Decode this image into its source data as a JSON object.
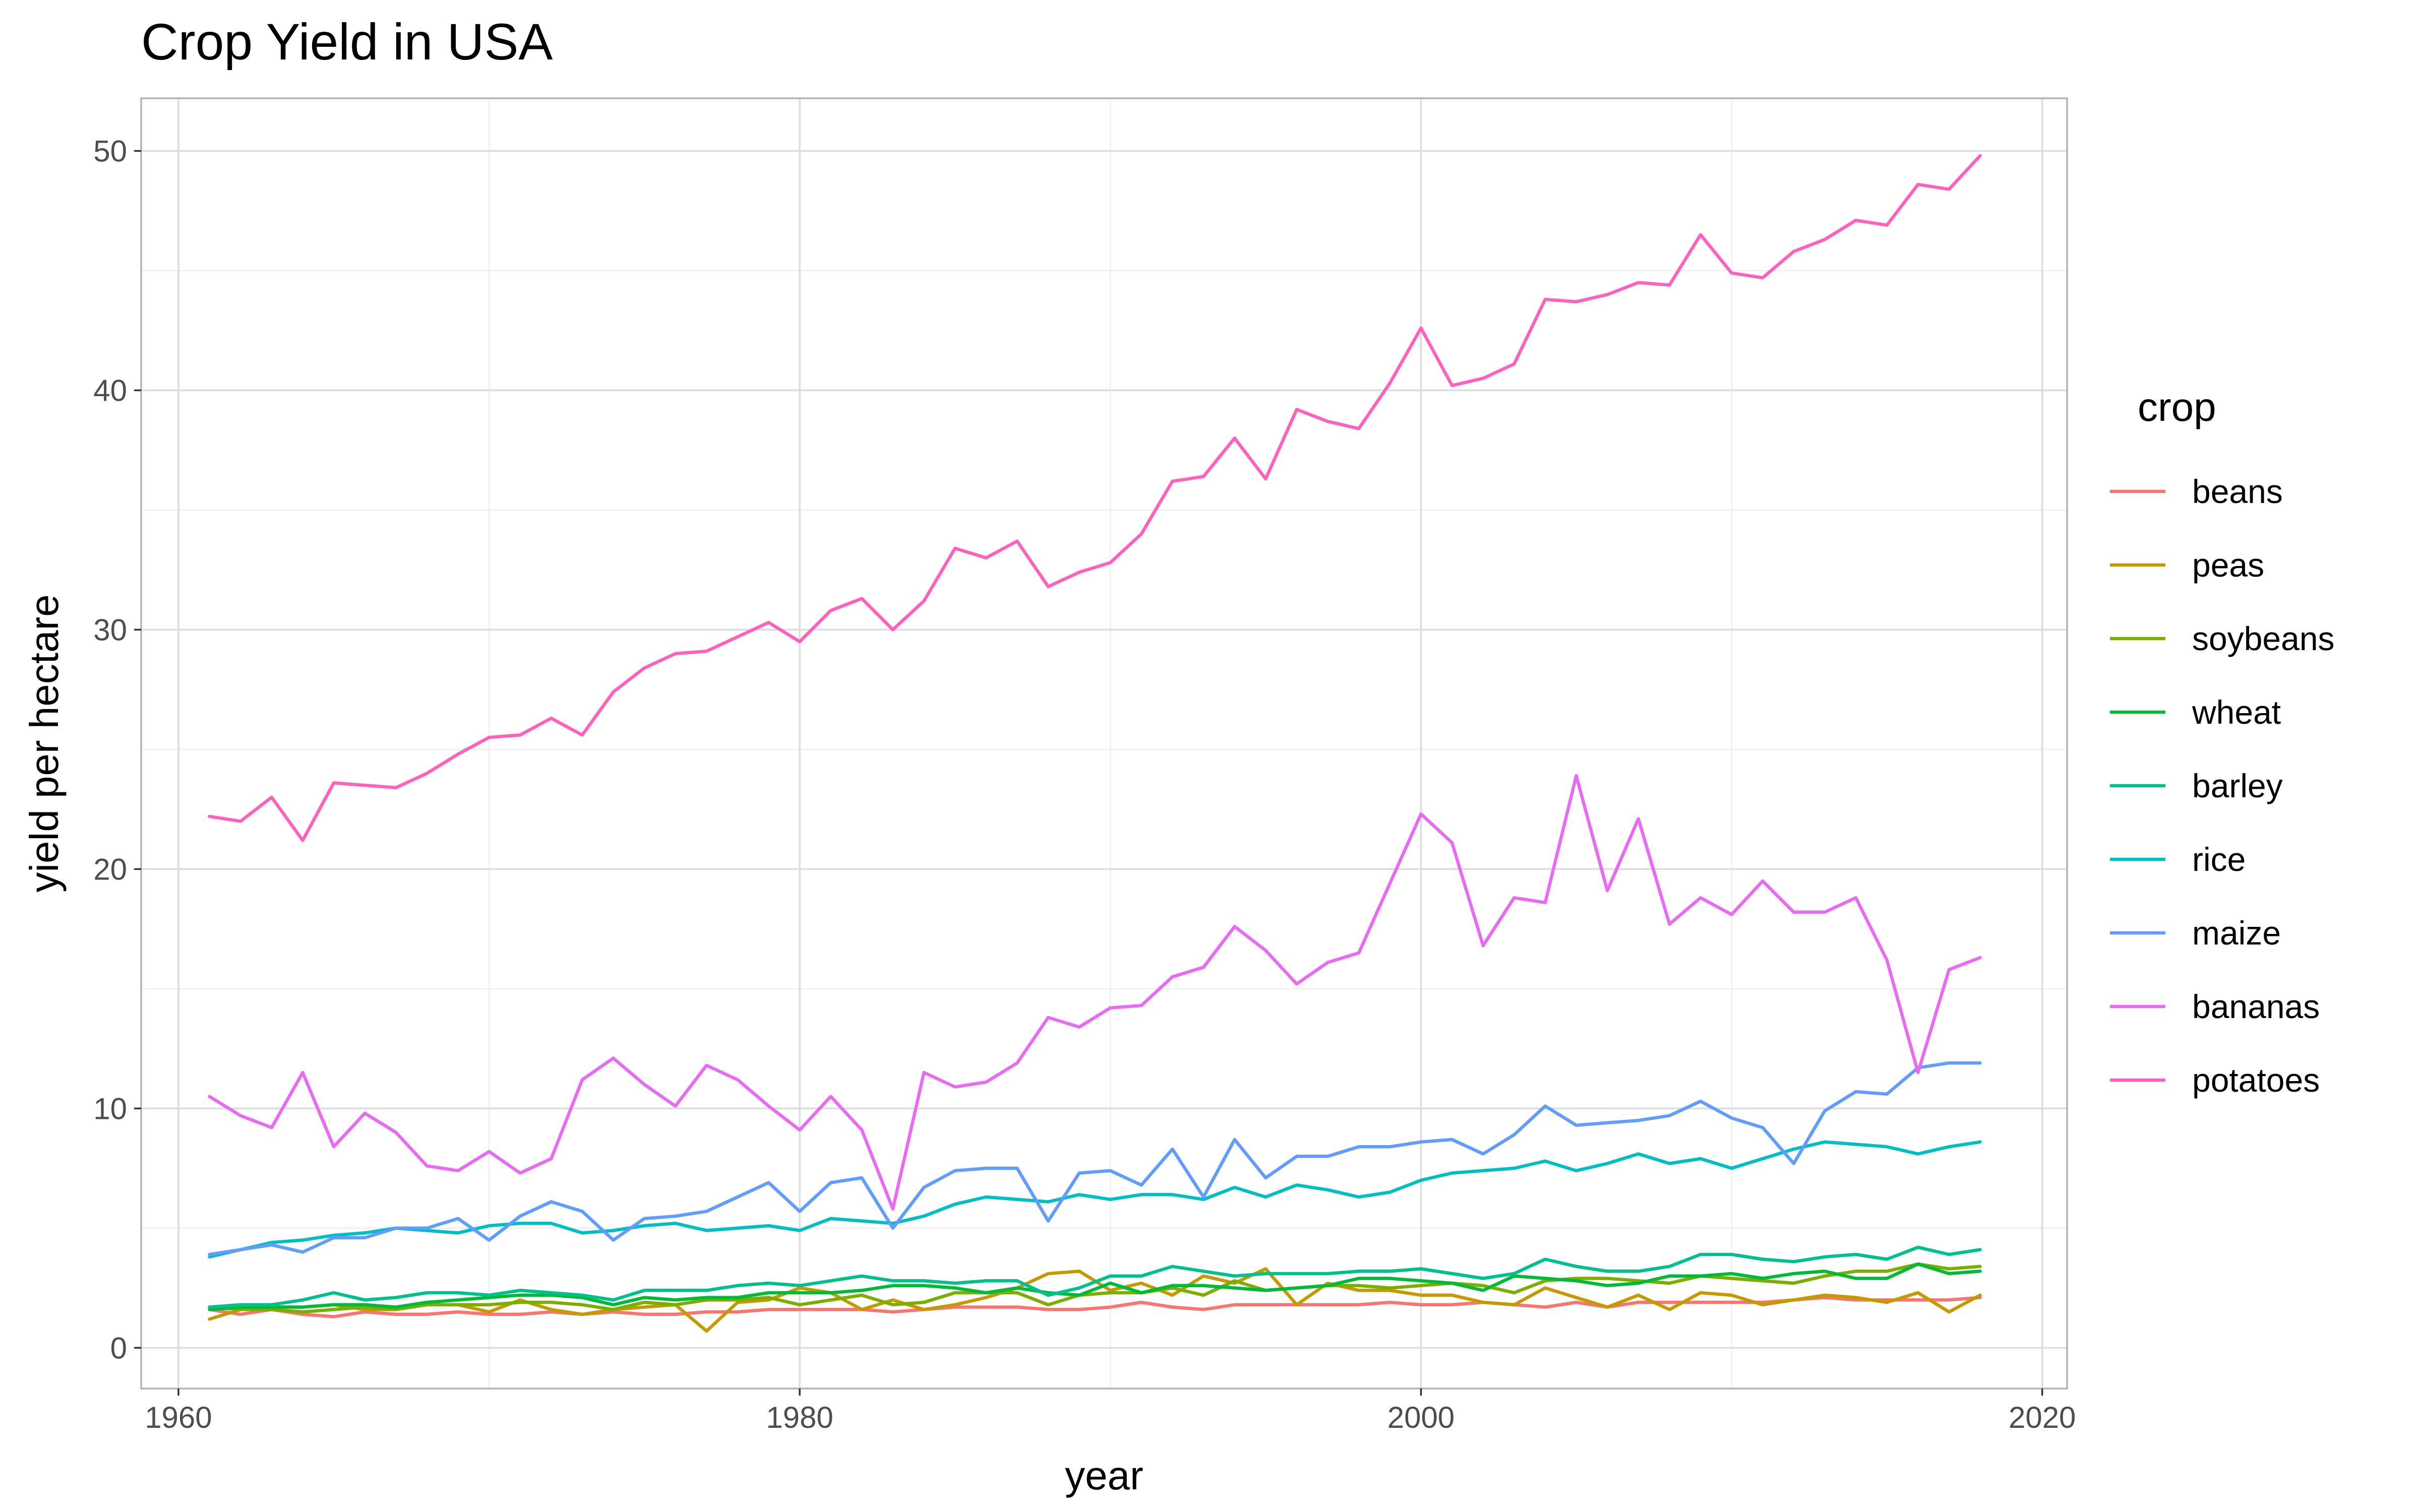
{
  "chart_data": {
    "type": "line",
    "title": "Crop Yield in USA",
    "xlabel": "year",
    "ylabel": "yield per hectare",
    "xlim": [
      1958.8,
      2020.8
    ],
    "ylim": [
      -1.7,
      52.2
    ],
    "x_ticks": [
      1960,
      1980,
      2000,
      2020
    ],
    "y_ticks": [
      0,
      10,
      20,
      30,
      40,
      50
    ],
    "grid": true,
    "legend": {
      "title": "crop",
      "placement": "right"
    },
    "x": [
      1961,
      1962,
      1963,
      1964,
      1965,
      1966,
      1967,
      1968,
      1969,
      1970,
      1971,
      1972,
      1973,
      1974,
      1975,
      1976,
      1977,
      1978,
      1979,
      1980,
      1981,
      1982,
      1983,
      1984,
      1985,
      1986,
      1987,
      1988,
      1989,
      1990,
      1991,
      1992,
      1993,
      1994,
      1995,
      1996,
      1997,
      1998,
      1999,
      2000,
      2001,
      2002,
      2003,
      2004,
      2005,
      2006,
      2007,
      2008,
      2009,
      2010,
      2011,
      2012,
      2013,
      2014,
      2015,
      2016,
      2017,
      2018
    ],
    "series": [
      {
        "name": "beans",
        "color": "#F8766D",
        "values": [
          1.6,
          1.4,
          1.6,
          1.4,
          1.3,
          1.5,
          1.4,
          1.4,
          1.5,
          1.4,
          1.4,
          1.5,
          1.4,
          1.5,
          1.4,
          1.4,
          1.5,
          1.5,
          1.6,
          1.6,
          1.6,
          1.6,
          1.5,
          1.6,
          1.7,
          1.7,
          1.7,
          1.6,
          1.6,
          1.7,
          1.9,
          1.7,
          1.6,
          1.8,
          1.8,
          1.8,
          1.8,
          1.8,
          1.9,
          1.8,
          1.8,
          1.9,
          1.8,
          1.7,
          1.9,
          1.7,
          1.9,
          1.9,
          1.9,
          1.9,
          1.9,
          2.0,
          2.1,
          2.0,
          2.0,
          2.0,
          2.0,
          2.1
        ]
      },
      {
        "name": "peas",
        "color": "#C49A00",
        "values": [
          1.2,
          1.6,
          1.7,
          1.7,
          1.8,
          1.6,
          1.6,
          1.8,
          1.8,
          1.5,
          2.0,
          1.6,
          1.4,
          1.6,
          1.7,
          1.8,
          0.7,
          1.9,
          2.0,
          2.5,
          2.3,
          1.6,
          2.0,
          1.6,
          1.8,
          2.1,
          2.5,
          3.1,
          3.2,
          2.4,
          2.7,
          2.2,
          3.0,
          2.7,
          3.3,
          1.8,
          2.7,
          2.4,
          2.4,
          2.2,
          2.2,
          1.9,
          1.8,
          2.5,
          2.1,
          1.7,
          2.2,
          1.6,
          2.3,
          2.2,
          1.8,
          2.0,
          2.2,
          2.1,
          1.9,
          2.3,
          1.5,
          2.2
        ]
      },
      {
        "name": "soybeans",
        "color": "#7CAE00",
        "values": [
          1.7,
          1.6,
          1.6,
          1.5,
          1.6,
          1.7,
          1.6,
          1.8,
          1.8,
          1.8,
          1.9,
          1.9,
          1.8,
          1.6,
          1.9,
          1.8,
          2.0,
          2.0,
          2.1,
          1.8,
          2.0,
          2.2,
          1.8,
          1.9,
          2.3,
          2.3,
          2.3,
          1.8,
          2.2,
          2.3,
          2.3,
          2.5,
          2.2,
          2.8,
          2.4,
          2.5,
          2.6,
          2.6,
          2.5,
          2.6,
          2.7,
          2.6,
          2.3,
          2.8,
          2.9,
          2.9,
          2.8,
          2.7,
          3.0,
          2.9,
          2.8,
          2.7,
          3.0,
          3.2,
          3.2,
          3.5,
          3.3,
          3.4
        ]
      },
      {
        "name": "wheat",
        "color": "#00BA38",
        "values": [
          1.6,
          1.7,
          1.7,
          1.7,
          1.8,
          1.8,
          1.7,
          1.9,
          2.0,
          2.1,
          2.2,
          2.2,
          2.1,
          1.8,
          2.1,
          2.0,
          2.1,
          2.1,
          2.3,
          2.3,
          2.3,
          2.4,
          2.6,
          2.6,
          2.5,
          2.3,
          2.5,
          2.3,
          2.2,
          2.7,
          2.3,
          2.6,
          2.6,
          2.5,
          2.4,
          2.5,
          2.6,
          2.9,
          2.9,
          2.8,
          2.7,
          2.4,
          3.0,
          2.9,
          2.8,
          2.6,
          2.7,
          3.0,
          3.0,
          3.1,
          2.9,
          3.1,
          3.2,
          2.9,
          2.9,
          3.5,
          3.1,
          3.2
        ]
      },
      {
        "name": "barley",
        "color": "#00C08B",
        "values": [
          1.7,
          1.8,
          1.8,
          2.0,
          2.3,
          2.0,
          2.1,
          2.3,
          2.3,
          2.2,
          2.4,
          2.3,
          2.2,
          2.0,
          2.4,
          2.4,
          2.4,
          2.6,
          2.7,
          2.6,
          2.8,
          3.0,
          2.8,
          2.8,
          2.7,
          2.8,
          2.8,
          2.2,
          2.5,
          3.0,
          3.0,
          3.4,
          3.2,
          3.0,
          3.1,
          3.1,
          3.1,
          3.2,
          3.2,
          3.3,
          3.1,
          2.9,
          3.1,
          3.7,
          3.4,
          3.2,
          3.2,
          3.4,
          3.9,
          3.9,
          3.7,
          3.6,
          3.8,
          3.9,
          3.7,
          4.2,
          3.9,
          4.1
        ]
      },
      {
        "name": "rice",
        "color": "#00BFC4",
        "values": [
          3.8,
          4.1,
          4.4,
          4.5,
          4.7,
          4.8,
          5.0,
          4.9,
          4.8,
          5.1,
          5.2,
          5.2,
          4.8,
          4.9,
          5.1,
          5.2,
          4.9,
          5.0,
          5.1,
          4.9,
          5.4,
          5.3,
          5.2,
          5.5,
          6.0,
          6.3,
          6.2,
          6.1,
          6.4,
          6.2,
          6.4,
          6.4,
          6.2,
          6.7,
          6.3,
          6.8,
          6.6,
          6.3,
          6.5,
          7.0,
          7.3,
          7.4,
          7.5,
          7.8,
          7.4,
          7.7,
          8.1,
          7.7,
          7.9,
          7.5,
          7.9,
          8.3,
          8.6,
          8.5,
          8.4,
          8.1,
          8.4,
          8.6
        ]
      },
      {
        "name": "maize",
        "color": "#619CFF",
        "values": [
          3.9,
          4.1,
          4.3,
          4.0,
          4.6,
          4.6,
          5.0,
          5.0,
          5.4,
          4.5,
          5.5,
          6.1,
          5.7,
          4.5,
          5.4,
          5.5,
          5.7,
          6.3,
          6.9,
          5.7,
          6.9,
          7.1,
          5.0,
          6.7,
          7.4,
          7.5,
          7.5,
          5.3,
          7.3,
          7.4,
          6.8,
          8.3,
          6.3,
          8.7,
          7.1,
          8.0,
          8.0,
          8.4,
          8.4,
          8.6,
          8.7,
          8.1,
          8.9,
          10.1,
          9.3,
          9.4,
          9.5,
          9.7,
          10.3,
          9.6,
          9.2,
          7.7,
          9.9,
          10.7,
          10.6,
          11.7,
          11.9,
          11.9
        ]
      },
      {
        "name": "bananas",
        "color": "#E76BF3",
        "values": [
          10.5,
          9.7,
          9.2,
          11.5,
          8.4,
          9.8,
          9.0,
          7.6,
          7.4,
          8.2,
          7.3,
          7.9,
          11.2,
          12.1,
          11.0,
          10.1,
          11.8,
          11.2,
          10.1,
          9.1,
          10.5,
          9.1,
          5.8,
          11.5,
          10.9,
          11.1,
          11.9,
          13.8,
          13.4,
          14.2,
          14.3,
          15.5,
          15.9,
          17.6,
          16.6,
          15.2,
          16.1,
          16.5,
          19.4,
          22.3,
          21.1,
          16.8,
          18.8,
          18.6,
          23.9,
          19.1,
          22.1,
          17.7,
          18.8,
          18.1,
          19.5,
          18.2,
          18.2,
          18.8,
          16.2,
          11.5,
          15.8,
          16.3
        ]
      },
      {
        "name": "potatoes",
        "color": "#FF62BC",
        "values": [
          22.2,
          22.0,
          23.0,
          21.2,
          23.6,
          23.5,
          23.4,
          24.0,
          24.8,
          25.5,
          25.6,
          26.3,
          25.6,
          27.4,
          28.4,
          29.0,
          29.1,
          29.7,
          30.3,
          29.5,
          30.8,
          31.3,
          30.0,
          31.2,
          33.4,
          33.0,
          33.7,
          31.8,
          32.4,
          32.8,
          34.0,
          36.2,
          36.4,
          38.0,
          36.3,
          39.2,
          38.7,
          38.4,
          40.3,
          42.6,
          40.2,
          40.5,
          41.1,
          43.8,
          43.7,
          44.0,
          44.5,
          44.4,
          46.5,
          44.9,
          44.7,
          45.8,
          46.3,
          47.1,
          46.9,
          48.6,
          48.4,
          49.8
        ]
      }
    ]
  }
}
